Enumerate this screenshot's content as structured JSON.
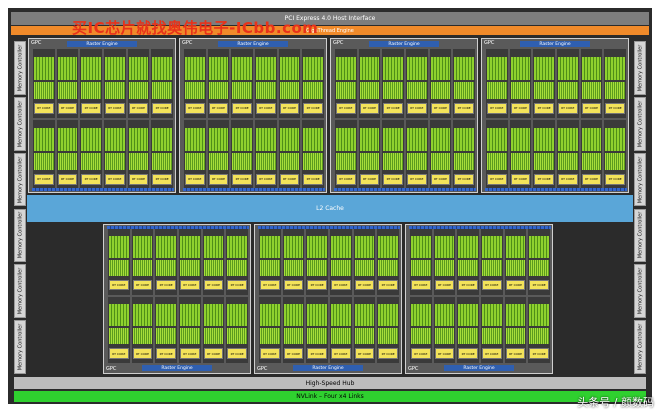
{
  "pcie": "PCI Express 4.0 Host Interface",
  "gigathread": "GigaThread Engine",
  "l2": "L2 Cache",
  "hub": "High-Speed Hub",
  "nvlink": "NVLink – Four x4 Links",
  "memory_controller": "Memory Controller",
  "gpc_label": "GPC",
  "raster_engine": "Raster Engine",
  "rt_core": "RT CORE",
  "watermark": "买IC芯片就找奥伟电子-ICbb.com",
  "credit": "头条号 / 颜数码",
  "top_gpcs": 4,
  "bottom_gpcs": 3,
  "left_controllers": 6,
  "right_controllers": 6
}
